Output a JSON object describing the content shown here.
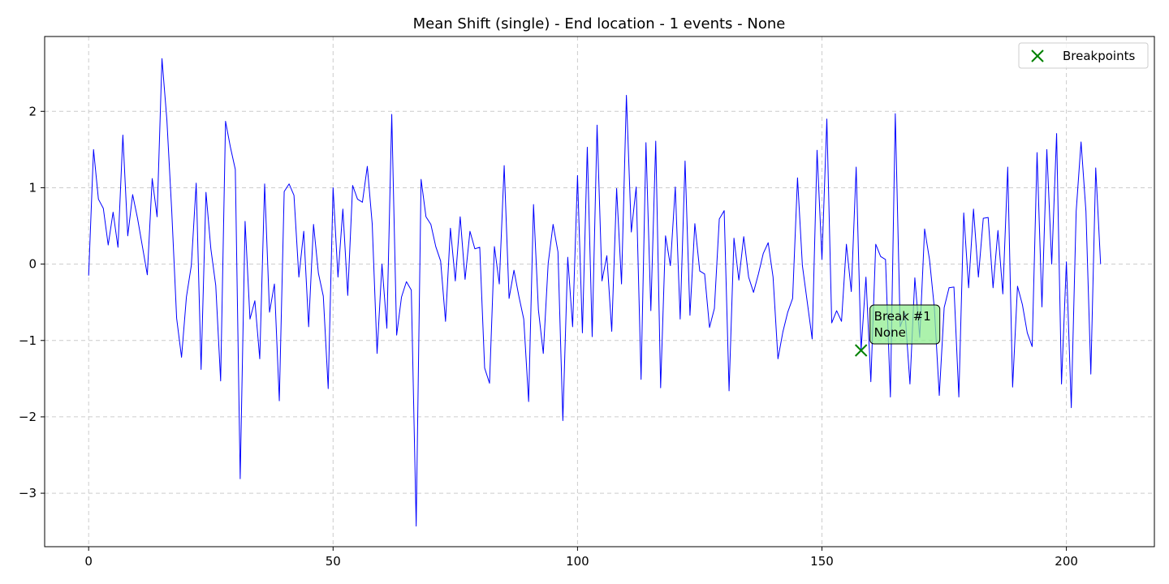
{
  "chart_data": {
    "type": "line",
    "title": "Mean Shift (single) - End location - 1 events - None",
    "xlabel": "",
    "ylabel": "",
    "xlim": [
      -9,
      218
    ],
    "ylim": [
      -3.7,
      2.98
    ],
    "x_ticks": [
      0,
      50,
      100,
      150,
      200
    ],
    "y_ticks": [
      -3,
      -2,
      -1,
      0,
      1,
      2
    ],
    "y_tick_labels": [
      "−3",
      "−2",
      "−1",
      "0",
      "1",
      "2"
    ],
    "grid": true,
    "legend_position": "top-right",
    "series": [
      {
        "color": "#0000ff",
        "values": [
          -0.15,
          1.5,
          0.85,
          0.73,
          0.25,
          0.68,
          0.22,
          1.69,
          0.37,
          0.91,
          0.6,
          0.23,
          -0.14,
          1.12,
          0.62,
          2.69,
          1.89,
          0.69,
          -0.71,
          -1.22,
          -0.43,
          -0.02,
          1.06,
          -1.38,
          0.94,
          0.2,
          -0.28,
          -1.53,
          1.87,
          1.53,
          1.24,
          -2.81,
          0.56,
          -0.72,
          -0.48,
          -1.24,
          1.05,
          -0.63,
          -0.26,
          -1.79,
          0.95,
          1.05,
          0.9,
          -0.17,
          0.43,
          -0.82,
          0.52,
          -0.12,
          -0.42,
          -1.63,
          1.0,
          -0.17,
          0.72,
          -0.41,
          1.03,
          0.85,
          0.81,
          1.28,
          0.53,
          -1.17,
          0.0,
          -0.84,
          1.96,
          -0.93,
          -0.43,
          -0.23,
          -0.34,
          -3.43,
          1.11,
          0.62,
          0.52,
          0.23,
          0.04,
          -0.75,
          0.47,
          -0.22,
          0.62,
          -0.2,
          0.43,
          0.2,
          0.22,
          -1.36,
          -1.56,
          0.23,
          -0.26,
          1.29,
          -0.45,
          -0.08,
          -0.42,
          -0.72,
          -1.8,
          0.78,
          -0.6,
          -1.17,
          0.01,
          0.52,
          0.16,
          -2.05,
          0.09,
          -0.82,
          1.16,
          -0.9,
          1.53,
          -0.95,
          1.82,
          -0.22,
          0.11,
          -0.88,
          0.99,
          -0.26,
          2.21,
          0.42,
          1.01,
          -1.51,
          1.59,
          -0.61,
          1.61,
          -1.62,
          0.37,
          -0.02,
          1.01,
          -0.72,
          1.35,
          -0.67,
          0.53,
          -0.09,
          -0.13,
          -0.83,
          -0.58,
          0.59,
          0.7,
          -1.66,
          0.34,
          -0.21,
          0.36,
          -0.17,
          -0.37,
          -0.13,
          0.14,
          0.28,
          -0.17,
          -1.24,
          -0.89,
          -0.63,
          -0.45,
          1.13,
          -0.02,
          -0.5,
          -0.98,
          1.49,
          0.06,
          1.9,
          -0.77,
          -0.61,
          -0.75,
          0.26,
          -0.36,
          1.27,
          -1.13,
          -0.17,
          -1.54,
          0.26,
          0.1,
          0.06,
          -1.74,
          1.97,
          -0.82,
          -0.64,
          -1.57,
          -0.18,
          -0.96,
          0.46,
          0.06,
          -0.58,
          -1.72,
          -0.57,
          -0.31,
          -0.3,
          -1.74,
          0.67,
          -0.31,
          0.72,
          -0.17,
          0.6,
          0.61,
          -0.31,
          0.44,
          -0.39,
          1.27,
          -1.61,
          -0.29,
          -0.53,
          -0.9,
          -1.08,
          1.46,
          -0.56,
          1.5,
          0.0,
          1.71,
          -1.57,
          0.03,
          -1.88,
          0.69,
          1.6,
          0.69,
          -1.44,
          1.26,
          0.0
        ]
      }
    ],
    "breakpoints": [
      {
        "x": 158,
        "y": -1.13,
        "label": "Break #1\nNone",
        "line1": "Break #1",
        "line2": "None"
      }
    ],
    "legend": [
      {
        "label": "Breakpoints",
        "marker": "x",
        "color": "#008000"
      }
    ],
    "colors": {
      "line": "#0000ff",
      "breakpoint": "#008000",
      "annotation_fill": "#90ee90",
      "grid": "#cccccc"
    }
  }
}
